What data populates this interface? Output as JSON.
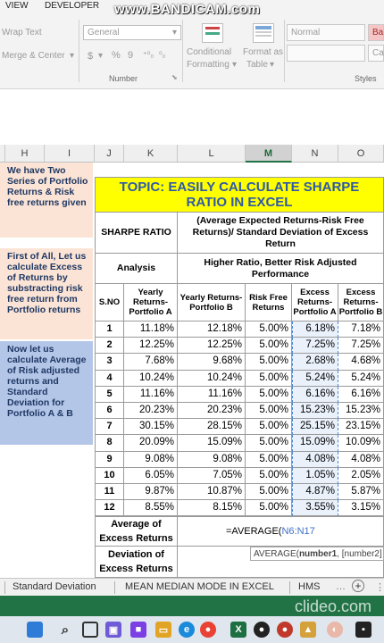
{
  "ribbon": {
    "tabs": [
      "VIEW",
      "DEVELOPER"
    ],
    "wrap_text": "Wrap Text",
    "merge_center": "Merge & Center",
    "number_format": "General",
    "dollar": "$",
    "percent": "%",
    "comma": "9",
    "number_group": "Number",
    "conditional_formatting": [
      "Conditional",
      "Formatting"
    ],
    "format_as_table": [
      "Format as",
      "Table"
    ],
    "style_normal": "Normal",
    "style_bad": "Ba",
    "style_neutral": "",
    "style_calc": "Ca",
    "styles_group": "Styles"
  },
  "watermark": "www.BANDICAM.com",
  "columns": [
    "H",
    "I",
    "J",
    "K",
    "L",
    "M",
    "N",
    "O"
  ],
  "notes": {
    "note1": "We have Two Series of Portfolio Returns & Risk free returns given",
    "note2": "First of All, Let us calculate Excess of Returns by substracting risk free return from Portfolio returns",
    "note3": "Now let us calculate Average of Risk adjusted returns and Standard Deviation for Portfolio A & B"
  },
  "title": "TOPIC: EASILY CALCULATE SHARPE RATIO IN EXCEL",
  "sharpe_label": "SHARPE RATIO",
  "sharpe_formula": "(Average Expected Returns-Risk Free Returns)/ Standard Deviation of Excess Return",
  "analysis_label": "Analysis",
  "analysis_text": "Higher Ratio, Better Risk Adjusted Performance",
  "headers": [
    "S.NO",
    "Yearly Returns-Portfolio A",
    "Yearly Returns-Portfolio B",
    "Risk Free Returns",
    "Excess Returns-Portfolio A",
    "Excess Returns-Portfolio B"
  ],
  "rows": [
    [
      "1",
      "11.18%",
      "12.18%",
      "5.00%",
      "6.18%",
      "7.18%"
    ],
    [
      "2",
      "12.25%",
      "12.25%",
      "5.00%",
      "7.25%",
      "7.25%"
    ],
    [
      "3",
      "7.68%",
      "9.68%",
      "5.00%",
      "2.68%",
      "4.68%"
    ],
    [
      "4",
      "10.24%",
      "10.24%",
      "5.00%",
      "5.24%",
      "5.24%"
    ],
    [
      "5",
      "11.16%",
      "11.16%",
      "5.00%",
      "6.16%",
      "6.16%"
    ],
    [
      "6",
      "20.23%",
      "20.23%",
      "5.00%",
      "15.23%",
      "15.23%"
    ],
    [
      "7",
      "30.15%",
      "28.15%",
      "5.00%",
      "25.15%",
      "23.15%"
    ],
    [
      "8",
      "20.09%",
      "15.09%",
      "5.00%",
      "15.09%",
      "10.09%"
    ],
    [
      "9",
      "9.08%",
      "9.08%",
      "5.00%",
      "4.08%",
      "4.08%"
    ],
    [
      "10",
      "6.05%",
      "7.05%",
      "5.00%",
      "1.05%",
      "2.05%"
    ],
    [
      "11",
      "9.87%",
      "10.87%",
      "5.00%",
      "4.87%",
      "5.87%"
    ],
    [
      "12",
      "8.55%",
      "8.15%",
      "5.00%",
      "3.55%",
      "3.15%"
    ]
  ],
  "avg_label": "Average of Excess Returns",
  "formula_prefix": "=AVERAGE(",
  "formula_range": "N6:N17",
  "dev_label": "Deviation of Excess Returns",
  "tooltip_prefix": "AVERAGE(",
  "tooltip_arg1": "number1",
  "tooltip_rest": ", [number2]",
  "sheet_tabs": [
    "Standard Deviation",
    "MEAN MEDIAN MODE IN EXCEL",
    "HMS"
  ],
  "clideo": "clideo.com",
  "colors": {
    "title_bg": "#ffff00",
    "title_text": "#2e5aa8",
    "note_peach": "#fbe4d5",
    "note_blue": "#b4c6e7",
    "excel_green": "#217346"
  }
}
